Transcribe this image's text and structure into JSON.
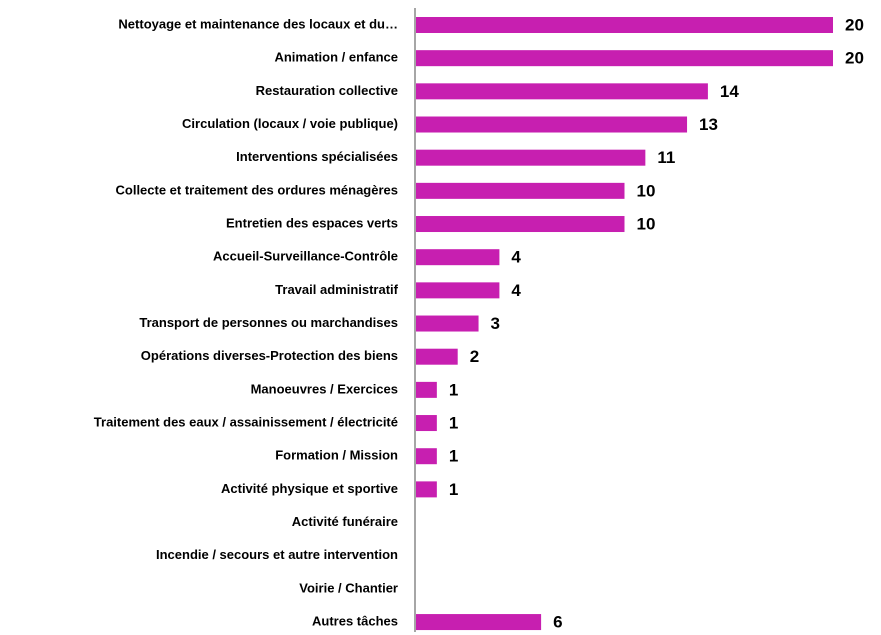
{
  "chart_data": {
    "type": "bar",
    "orientation": "horizontal",
    "color": "#c71fb0",
    "categories": [
      "Nettoyage et maintenance des locaux et du…",
      "Animation / enfance",
      "Restauration collective",
      "Circulation (locaux / voie publique)",
      "Interventions spécialisées",
      "Collecte et traitement des ordures ménagères",
      "Entretien des espaces verts",
      "Accueil-Surveillance-Contrôle",
      "Travail administratif",
      "Transport de personnes ou marchandises",
      "Opérations diverses-Protection des biens",
      "Manoeuvres / Exercices",
      "Traitement des eaux / assainissement / électricité",
      "Formation / Mission",
      "Activité physique et sportive",
      "Activité funéraire",
      "Incendie / secours et autre intervention",
      "Voirie / Chantier",
      "Autres tâches"
    ],
    "values": [
      20,
      20,
      14,
      13,
      11,
      10,
      10,
      4,
      4,
      3,
      2,
      1,
      1,
      1,
      1,
      null,
      null,
      null,
      6
    ]
  }
}
